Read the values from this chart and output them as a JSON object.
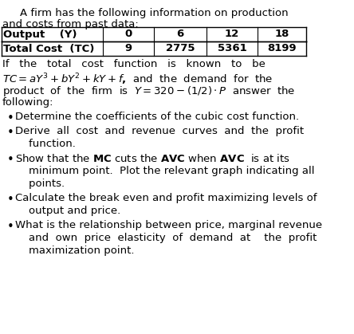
{
  "title_line1": "A firm has the following information on production",
  "title_line2": "and costs from past data:",
  "table_headers": [
    "Output    (Y)",
    "0",
    "6",
    "12",
    "18"
  ],
  "table_row2": [
    "Total Cost  (TC)",
    "9",
    "2775",
    "5361",
    "8199"
  ],
  "para1_line1": "If   the   total   cost   function   is   known   to   be",
  "para1_line2": "$TC = aY^3 + bY^2 + kY + f$ ,  and  the  demand  for  the",
  "para1_line3": "product  of  the  firm  is  $Y = 320-(1/2)\\cdot P$  answer  the",
  "para1_line4": "following:",
  "bullets": [
    "Determine the coefficients of the cubic cost function.",
    "Derive  all  cost  and  revenue  curves  and  the  profit\n    function.",
    "Show that the $\\mathbf{MC}$ cuts the $\\mathbf{AVC}$ when $\\mathbf{AVC}$  is at its\n    minimum point.  Plot the relevant graph indicating all\n    points.",
    "Calculate the break even and profit maximizing levels of\n    output and price.",
    "What is the relationship between price, marginal revenue\n    and  own  price  elasticity  of  demand  at    the  profit\n    maximization point."
  ],
  "bg_color": "#f5f5f5",
  "text_color": "#000000",
  "font_size": 10.5,
  "fig_width": 4.44,
  "fig_height": 4.19
}
